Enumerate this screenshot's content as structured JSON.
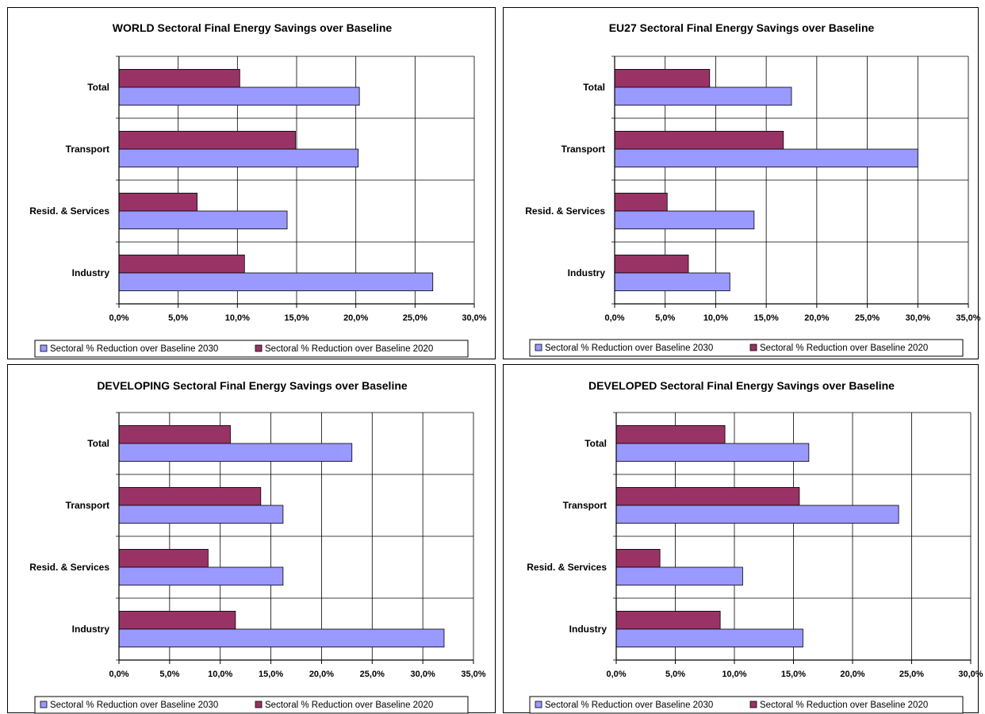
{
  "colors": {
    "series_2030": "#9999ff",
    "series_2020": "#993366",
    "grid": "#000000"
  },
  "charts": [
    {
      "id": "world",
      "title": "WORLD Sectoral Final Energy Savings over Baseline",
      "categories": [
        "Total",
        "Transport",
        "Resid. & Services",
        "Industry"
      ],
      "tick_labels": [
        "0,0%",
        "5,0%",
        "10,0%",
        "15,0%",
        "20,0%",
        "25,0%",
        "30,0%"
      ],
      "legend": [
        "Sectoral % Reduction over Baseline 2030",
        "Sectoral % Reduction over Baseline 2020"
      ]
    },
    {
      "id": "eu27",
      "title": "EU27 Sectoral Final Energy Savings over Baseline",
      "categories": [
        "Total",
        "Transport",
        "Resid. & Services",
        "Industry"
      ],
      "tick_labels": [
        "0,0%",
        "5,0%",
        "10,0%",
        "15,0%",
        "20,0%",
        "25,0%",
        "30,0%",
        "35,0%"
      ],
      "legend": [
        "Sectoral % Reduction over Baseline 2030",
        "Sectoral % Reduction over Baseline 2020"
      ]
    },
    {
      "id": "developing",
      "title": "DEVELOPING Sectoral Final Energy Savings over Baseline",
      "categories": [
        "Total",
        "Transport",
        "Resid. & Services",
        "Industry"
      ],
      "tick_labels": [
        "0,0%",
        "5,0%",
        "10,0%",
        "15,0%",
        "20,0%",
        "25,0%",
        "30,0%",
        "35,0%"
      ],
      "legend": [
        "Sectoral % Reduction over Baseline 2030",
        "Sectoral % Reduction over Baseline 2020"
      ]
    },
    {
      "id": "developed",
      "title": "DEVELOPED Sectoral Final Energy Savings over Baseline",
      "categories": [
        "Total",
        "Transport",
        "Resid. & Services",
        "Industry"
      ],
      "tick_labels": [
        "0,0%",
        "5,0%",
        "10,0%",
        "15,0%",
        "20,0%",
        "25,0%",
        "30,0%"
      ],
      "legend": [
        "Sectoral % Reduction over Baseline 2030",
        "Sectoral % Reduction over Baseline 2020"
      ]
    }
  ],
  "chart_data": [
    {
      "type": "bar",
      "orientation": "horizontal",
      "title": "WORLD Sectoral Final Energy Savings over Baseline",
      "categories": [
        "Total",
        "Transport",
        "Resid. & Services",
        "Industry"
      ],
      "xlim": [
        0,
        30
      ],
      "grid": true,
      "legend_position": "bottom",
      "series": [
        {
          "name": "Sectoral % Reduction over Baseline 2030",
          "values": [
            20.3,
            20.2,
            14.2,
            26.5
          ]
        },
        {
          "name": "Sectoral % Reduction over Baseline 2020",
          "values": [
            10.2,
            14.9,
            6.6,
            10.6
          ]
        }
      ]
    },
    {
      "type": "bar",
      "orientation": "horizontal",
      "title": "EU27 Sectoral Final Energy Savings over Baseline",
      "categories": [
        "Total",
        "Transport",
        "Resid. & Services",
        "Industry"
      ],
      "xlim": [
        0,
        35
      ],
      "grid": true,
      "legend_position": "bottom",
      "series": [
        {
          "name": "Sectoral % Reduction over Baseline 2030",
          "values": [
            17.5,
            30.0,
            13.8,
            11.4
          ]
        },
        {
          "name": "Sectoral % Reduction over Baseline 2020",
          "values": [
            9.4,
            16.7,
            5.2,
            7.3
          ]
        }
      ]
    },
    {
      "type": "bar",
      "orientation": "horizontal",
      "title": "DEVELOPING Sectoral Final Energy Savings over Baseline",
      "categories": [
        "Total",
        "Transport",
        "Resid. & Services",
        "Industry"
      ],
      "xlim": [
        0,
        35
      ],
      "grid": true,
      "legend_position": "bottom",
      "series": [
        {
          "name": "Sectoral % Reduction over Baseline 2030",
          "values": [
            23.0,
            16.2,
            16.2,
            32.1
          ]
        },
        {
          "name": "Sectoral % Reduction over Baseline 2020",
          "values": [
            11.0,
            14.0,
            8.8,
            11.5
          ]
        }
      ]
    },
    {
      "type": "bar",
      "orientation": "horizontal",
      "title": "DEVELOPED Sectoral Final Energy Savings over Baseline",
      "categories": [
        "Total",
        "Transport",
        "Resid. & Services",
        "Industry"
      ],
      "xlim": [
        0,
        30
      ],
      "grid": true,
      "legend_position": "bottom",
      "series": [
        {
          "name": "Sectoral % Reduction over Baseline 2030",
          "values": [
            16.3,
            23.9,
            10.7,
            15.8
          ]
        },
        {
          "name": "Sectoral % Reduction over Baseline 2020",
          "values": [
            9.2,
            15.5,
            3.7,
            8.8
          ]
        }
      ]
    }
  ]
}
